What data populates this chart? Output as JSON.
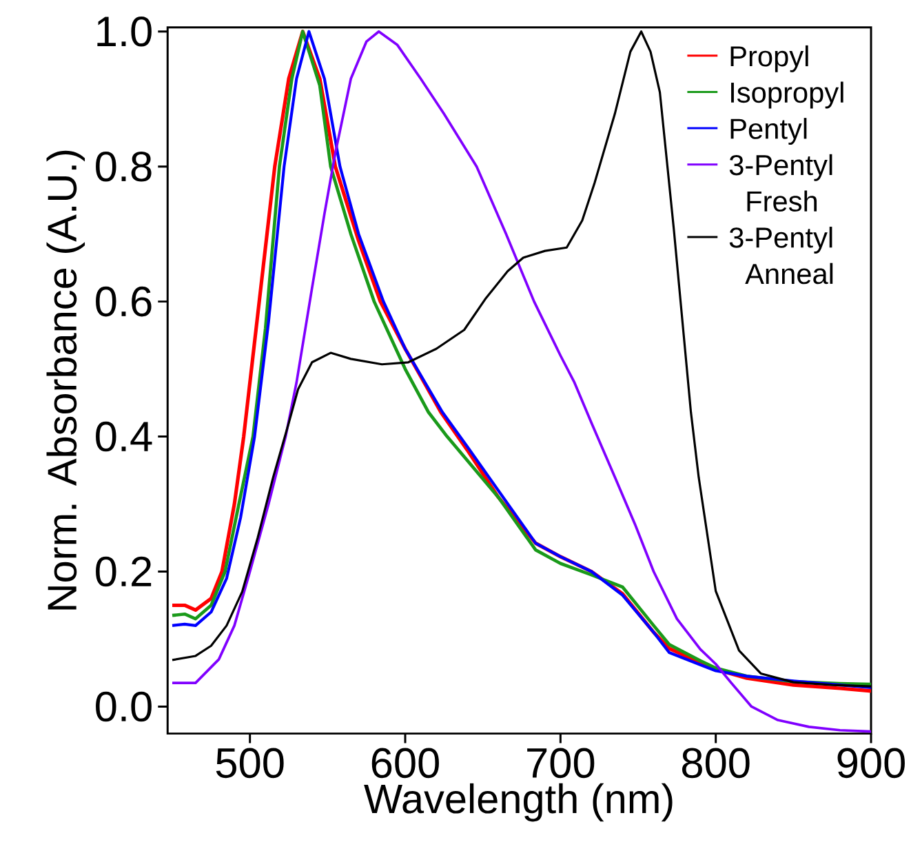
{
  "chart_data": {
    "type": "line",
    "xlabel": "Wavelength (nm)",
    "ylabel": "Norm. Absorbance (A.U.)",
    "xlim": [
      447,
      900
    ],
    "ylim": [
      -0.04,
      1.006
    ],
    "xticks": [
      500,
      600,
      700,
      800,
      900
    ],
    "yticks": [
      {
        "value": 0,
        "label": "0.0"
      },
      {
        "value": 0.2,
        "label": "0.2"
      },
      {
        "value": 0.4,
        "label": "0.4"
      },
      {
        "value": 0.6,
        "label": "0.6"
      },
      {
        "value": 0.8,
        "label": "0.8"
      },
      {
        "value": 1,
        "label": "1.0"
      }
    ],
    "grid": false,
    "legend": "top right",
    "marker": "none",
    "line_style": "solid",
    "series": [
      {
        "name": "Propyl",
        "color": "#ff0000",
        "x": [
          450,
          458,
          465,
          475,
          482,
          490,
          496,
          505,
          516,
          525,
          534,
          545,
          555,
          570,
          584,
          600,
          623,
          640,
          660,
          684,
          700,
          720,
          740,
          760,
          770,
          790,
          800,
          820,
          850,
          880,
          900
        ],
        "values": [
          0.15,
          0.15,
          0.143,
          0.16,
          0.2,
          0.3,
          0.4,
          0.58,
          0.8,
          0.93,
          1.0,
          0.93,
          0.8,
          0.69,
          0.6,
          0.53,
          0.436,
          0.38,
          0.31,
          0.242,
          0.222,
          0.2,
          0.167,
          0.11,
          0.086,
          0.065,
          0.055,
          0.042,
          0.032,
          0.027,
          0.023
        ]
      },
      {
        "name": "Isopropyl",
        "color": "#1a9a1a",
        "x": [
          450,
          458,
          465,
          475,
          484,
          492,
          502,
          510,
          519,
          527,
          534,
          545,
          552,
          565,
          580,
          600,
          615,
          627,
          660,
          684,
          700,
          720,
          740,
          760,
          770,
          790,
          800,
          820,
          850,
          880,
          900
        ],
        "values": [
          0.135,
          0.137,
          0.13,
          0.15,
          0.2,
          0.29,
          0.4,
          0.56,
          0.8,
          0.93,
          1.0,
          0.92,
          0.8,
          0.7,
          0.6,
          0.5,
          0.436,
          0.4,
          0.31,
          0.232,
          0.212,
          0.195,
          0.177,
          0.12,
          0.092,
          0.068,
          0.057,
          0.045,
          0.037,
          0.034,
          0.033
        ]
      },
      {
        "name": "Pentyl",
        "color": "#0000ff",
        "x": [
          450,
          458,
          465,
          475,
          485,
          494,
          503,
          512,
          522,
          530,
          538,
          548,
          558,
          570,
          586,
          600,
          624,
          640,
          660,
          684,
          700,
          720,
          740,
          760,
          770,
          790,
          800,
          820,
          850,
          880,
          900
        ],
        "values": [
          0.12,
          0.122,
          0.12,
          0.14,
          0.19,
          0.28,
          0.4,
          0.57,
          0.8,
          0.93,
          1.0,
          0.93,
          0.8,
          0.7,
          0.6,
          0.53,
          0.436,
          0.385,
          0.32,
          0.242,
          0.222,
          0.2,
          0.165,
          0.11,
          0.08,
          0.062,
          0.053,
          0.045,
          0.038,
          0.032,
          0.028
        ]
      },
      {
        "name": "3-Pentyl Fresh",
        "color": "#8000ff",
        "x": [
          450,
          465,
          480,
          490,
          500,
          512,
          523,
          530,
          540,
          548,
          555,
          565,
          575,
          583,
          595,
          610,
          625,
          646,
          665,
          683,
          700,
          709,
          720,
          735,
          748,
          760,
          775,
          790,
          800,
          810,
          823,
          840,
          860,
          880,
          900
        ],
        "values": [
          0.035,
          0.035,
          0.07,
          0.12,
          0.2,
          0.3,
          0.4,
          0.48,
          0.62,
          0.73,
          0.82,
          0.93,
          0.985,
          1.0,
          0.98,
          0.93,
          0.878,
          0.8,
          0.7,
          0.6,
          0.52,
          0.48,
          0.42,
          0.34,
          0.27,
          0.2,
          0.13,
          0.085,
          0.063,
          0.035,
          0.0,
          -0.02,
          -0.03,
          -0.035,
          -0.037
        ]
      },
      {
        "name": "3-Pentyl Anneal",
        "color": "#000000",
        "x": [
          450,
          465,
          475,
          485,
          495,
          505,
          515,
          525,
          531,
          540,
          552,
          565,
          585,
          602,
          620,
          638,
          652,
          666,
          676,
          690,
          704,
          714,
          722,
          735,
          745,
          752,
          758,
          764,
          773,
          784,
          789,
          800,
          815,
          829,
          850,
          875,
          900
        ],
        "values": [
          0.069,
          0.075,
          0.09,
          0.12,
          0.17,
          0.25,
          0.34,
          0.42,
          0.47,
          0.51,
          0.524,
          0.515,
          0.507,
          0.51,
          0.53,
          0.558,
          0.605,
          0.645,
          0.665,
          0.675,
          0.68,
          0.72,
          0.776,
          0.878,
          0.97,
          1.0,
          0.97,
          0.91,
          0.707,
          0.436,
          0.34,
          0.171,
          0.083,
          0.049,
          0.036,
          0.032,
          0.03
        ]
      }
    ]
  }
}
